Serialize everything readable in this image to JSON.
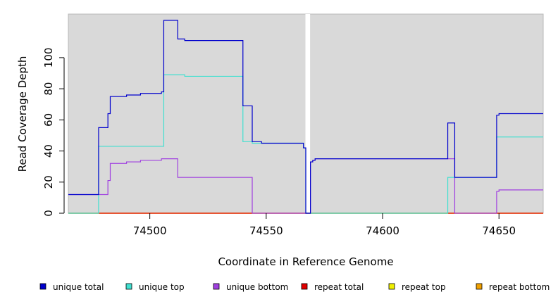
{
  "chart_data": {
    "type": "line",
    "title": "",
    "xlabel": "Coordinate in Reference Genome",
    "ylabel": "Read Coverage Depth",
    "xlim": [
      74465,
      74669
    ],
    "ylim": [
      0,
      128
    ],
    "xticks": [
      74500,
      74550,
      74600,
      74650
    ],
    "yticks": [
      0,
      20,
      40,
      60,
      80,
      100
    ],
    "grid": false,
    "legend_position": "bottom",
    "gap": [
      74567,
      74569
    ],
    "series": [
      {
        "name": "unique total",
        "color": "#0000cd",
        "points": [
          [
            74465,
            12
          ],
          [
            74478,
            12
          ],
          [
            74478,
            55
          ],
          [
            74482,
            55
          ],
          [
            74482,
            64
          ],
          [
            74483,
            64
          ],
          [
            74483,
            75
          ],
          [
            74490,
            75
          ],
          [
            74490,
            76
          ],
          [
            74496,
            76
          ],
          [
            74496,
            77
          ],
          [
            74505,
            77
          ],
          [
            74505,
            78
          ],
          [
            74506,
            78
          ],
          [
            74506,
            124
          ],
          [
            74512,
            124
          ],
          [
            74512,
            112
          ],
          [
            74515,
            112
          ],
          [
            74515,
            111
          ],
          [
            74540,
            111
          ],
          [
            74540,
            69
          ],
          [
            74544,
            69
          ],
          [
            74544,
            46
          ],
          [
            74548,
            46
          ],
          [
            74548,
            45
          ],
          [
            74566,
            45
          ],
          [
            74566,
            42
          ],
          [
            74567,
            42
          ],
          [
            74567,
            0
          ],
          [
            74569,
            0
          ],
          [
            74569,
            33
          ],
          [
            74570,
            33
          ],
          [
            74570,
            34
          ],
          [
            74571,
            34
          ],
          [
            74571,
            35
          ],
          [
            74628,
            35
          ],
          [
            74628,
            58
          ],
          [
            74631,
            58
          ],
          [
            74631,
            23
          ],
          [
            74649,
            23
          ],
          [
            74649,
            63
          ],
          [
            74650,
            63
          ],
          [
            74650,
            64
          ],
          [
            74669,
            64
          ]
        ]
      },
      {
        "name": "unique top",
        "color": "#40e0d0",
        "points": [
          [
            74465,
            0
          ],
          [
            74478,
            0
          ],
          [
            74478,
            43
          ],
          [
            74506,
            43
          ],
          [
            74506,
            89
          ],
          [
            74515,
            89
          ],
          [
            74515,
            88
          ],
          [
            74540,
            88
          ],
          [
            74540,
            46
          ],
          [
            74544,
            46
          ],
          [
            74544,
            45
          ],
          [
            74566,
            45
          ],
          [
            74566,
            42
          ],
          [
            74567,
            42
          ],
          [
            74567,
            0
          ],
          [
            74628,
            0
          ],
          [
            74628,
            23
          ],
          [
            74631,
            23
          ],
          [
            74631,
            23
          ],
          [
            74649,
            23
          ],
          [
            74649,
            49
          ],
          [
            74669,
            49
          ]
        ]
      },
      {
        "name": "unique bottom",
        "color": "#a040e0",
        "points": [
          [
            74465,
            12
          ],
          [
            74482,
            12
          ],
          [
            74482,
            21
          ],
          [
            74483,
            21
          ],
          [
            74483,
            32
          ],
          [
            74490,
            32
          ],
          [
            74490,
            33
          ],
          [
            74496,
            33
          ],
          [
            74496,
            34
          ],
          [
            74505,
            34
          ],
          [
            74505,
            35
          ],
          [
            74512,
            35
          ],
          [
            74512,
            23
          ],
          [
            74544,
            23
          ],
          [
            74544,
            0
          ],
          [
            74569,
            0
          ],
          [
            74569,
            33
          ],
          [
            74570,
            33
          ],
          [
            74570,
            34
          ],
          [
            74571,
            34
          ],
          [
            74571,
            35
          ],
          [
            74631,
            35
          ],
          [
            74631,
            0
          ],
          [
            74649,
            0
          ],
          [
            74649,
            14
          ],
          [
            74650,
            14
          ],
          [
            74650,
            15
          ],
          [
            74669,
            15
          ]
        ]
      },
      {
        "name": "repeat total",
        "color": "#e00000",
        "points": [
          [
            74465,
            0
          ],
          [
            74669,
            0
          ]
        ]
      },
      {
        "name": "repeat top",
        "color": "#f0f000",
        "points": [
          [
            74465,
            0
          ],
          [
            74669,
            0
          ]
        ]
      },
      {
        "name": "repeat bottom",
        "color": "#f0a000",
        "points": [
          [
            74465,
            0
          ],
          [
            74669,
            0
          ]
        ]
      }
    ]
  }
}
